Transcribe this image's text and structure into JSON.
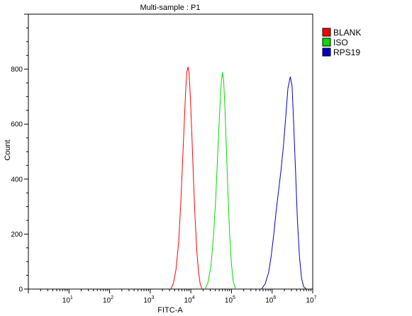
{
  "chart_data": {
    "type": "line",
    "title": "Multi-sample : P1",
    "xlabel": "FITC-A",
    "ylabel": "Count",
    "x_scale": "log",
    "xlim": [
      1,
      10000000
    ],
    "ylim": [
      0,
      1000
    ],
    "x_ticks": [
      {
        "base": "10",
        "exp": "1",
        "value": 10
      },
      {
        "base": "10",
        "exp": "2",
        "value": 100
      },
      {
        "base": "10",
        "exp": "3",
        "value": 1000
      },
      {
        "base": "10",
        "exp": "4",
        "value": 10000
      },
      {
        "base": "10",
        "exp": "5",
        "value": 100000
      },
      {
        "base": "10",
        "exp": "6",
        "value": 1000000
      },
      {
        "base": "10",
        "exp": "7",
        "value": 10000000
      }
    ],
    "y_ticks": [
      "0",
      "200",
      "400",
      "600",
      "800"
    ],
    "y_tick_values": [
      0,
      200,
      400,
      600,
      800
    ],
    "grid": false,
    "legend_position": "right",
    "series": [
      {
        "name": "BLANK",
        "color": "#ff0000",
        "peak_x": 8500,
        "peak_y": 808,
        "points": [
          [
            3200,
            0
          ],
          [
            3700,
            20
          ],
          [
            4300,
            70
          ],
          [
            5000,
            170
          ],
          [
            5600,
            300
          ],
          [
            6200,
            450
          ],
          [
            6900,
            610
          ],
          [
            7500,
            730
          ],
          [
            8000,
            790
          ],
          [
            8500,
            808
          ],
          [
            9000,
            790
          ],
          [
            9700,
            700
          ],
          [
            10600,
            560
          ],
          [
            11600,
            400
          ],
          [
            12700,
            260
          ],
          [
            14000,
            140
          ],
          [
            15500,
            60
          ],
          [
            17000,
            18
          ],
          [
            19000,
            0
          ]
        ]
      },
      {
        "name": "ISO",
        "color": "#00dd00",
        "peak_x": 60000,
        "peak_y": 788,
        "points": [
          [
            22000,
            0
          ],
          [
            26000,
            20
          ],
          [
            31000,
            80
          ],
          [
            36000,
            190
          ],
          [
            41000,
            330
          ],
          [
            46000,
            500
          ],
          [
            51000,
            640
          ],
          [
            56000,
            750
          ],
          [
            60000,
            788
          ],
          [
            64000,
            760
          ],
          [
            69000,
            660
          ],
          [
            75000,
            510
          ],
          [
            82000,
            350
          ],
          [
            90000,
            200
          ],
          [
            100000,
            90
          ],
          [
            110000,
            30
          ],
          [
            125000,
            0
          ]
        ]
      },
      {
        "name": "RPS19",
        "color": "#0000cc",
        "peak_x": 2800000,
        "peak_y": 772,
        "points": [
          [
            550000,
            0
          ],
          [
            680000,
            20
          ],
          [
            820000,
            60
          ],
          [
            950000,
            120
          ],
          [
            1100000,
            200
          ],
          [
            1250000,
            280
          ],
          [
            1450000,
            360
          ],
          [
            1650000,
            430
          ],
          [
            1900000,
            520
          ],
          [
            2150000,
            620
          ],
          [
            2450000,
            730
          ],
          [
            2800000,
            772
          ],
          [
            3100000,
            740
          ],
          [
            3400000,
            600
          ],
          [
            3800000,
            420
          ],
          [
            4200000,
            250
          ],
          [
            4700000,
            120
          ],
          [
            5300000,
            40
          ],
          [
            6000000,
            8
          ],
          [
            7000000,
            0
          ]
        ]
      }
    ]
  }
}
